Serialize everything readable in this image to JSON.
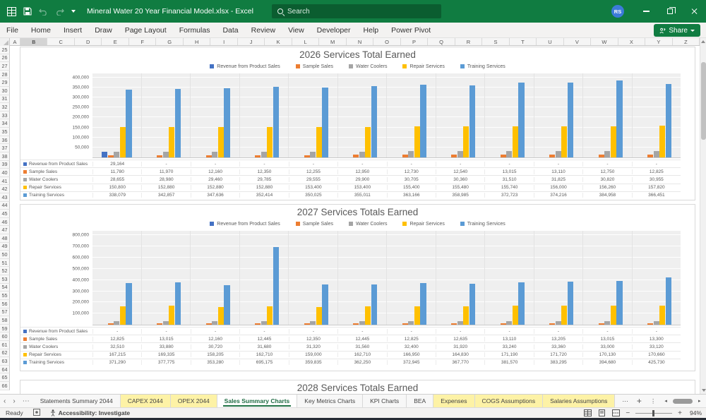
{
  "titlebar": {
    "title": "Mineral Water 20 Year Financial Model.xlsx - Excel",
    "search_placeholder": "Search",
    "avatar_initials": "RS"
  },
  "ribbon": {
    "tabs": [
      "File",
      "Home",
      "Insert",
      "Draw",
      "Page Layout",
      "Formulas",
      "Data",
      "Review",
      "View",
      "Developer",
      "Help",
      "Power Pivot"
    ],
    "share_label": "Share"
  },
  "grid": {
    "column_letters": [
      "A",
      "B",
      "C",
      "D",
      "E",
      "F",
      "G",
      "H",
      "I",
      "J",
      "K",
      "L",
      "M",
      "N",
      "O",
      "P",
      "Q",
      "R",
      "S",
      "T",
      "U",
      "V",
      "W",
      "X",
      "Y",
      "Z"
    ],
    "selected_column": "B",
    "row_start": 25,
    "row_end": 66
  },
  "chart_data": [
    {
      "type": "bar",
      "title": "2026 Services Total Earned",
      "legend_position": "top",
      "grid": true,
      "n_categories": 12,
      "ylim": [
        0,
        400000
      ],
      "ytick_step": 50000,
      "scale_max": 420000,
      "series": [
        {
          "name": "Revenue from Product Sales",
          "color": "#4472C4",
          "values": [
            29164,
            0,
            0,
            0,
            0,
            0,
            0,
            0,
            0,
            0,
            0,
            0
          ]
        },
        {
          "name": "Sample Sales",
          "color": "#ED7D31",
          "values": [
            11780,
            11970,
            12160,
            12350,
            12255,
            12950,
            12730,
            12540,
            13015,
            13110,
            12750,
            12825
          ]
        },
        {
          "name": "Water Coolers",
          "color": "#A5A5A5",
          "values": [
            28655,
            28980,
            29460,
            29785,
            29555,
            29900,
            30705,
            30360,
            31510,
            31825,
            30820,
            30955
          ]
        },
        {
          "name": "Repair Services",
          "color": "#FFC000",
          "values": [
            150800,
            152880,
            152880,
            152880,
            153400,
            153400,
            155400,
            155480,
            155740,
            156000,
            156260,
            157820
          ]
        },
        {
          "name": "Training Services",
          "color": "#5B9BD5",
          "values": [
            338079,
            342857,
            347636,
            352414,
            350025,
            355011,
            363166,
            358985,
            372723,
            374216,
            384958,
            366451
          ]
        }
      ]
    },
    {
      "type": "bar",
      "title": "2027 Services Totals Earned",
      "legend_position": "top",
      "grid": true,
      "n_categories": 12,
      "ylim": [
        0,
        800000
      ],
      "ytick_step": 100000,
      "scale_max": 840000,
      "series": [
        {
          "name": "Revenue from Product Sales",
          "color": "#4472C4",
          "values": [
            0,
            0,
            0,
            0,
            0,
            0,
            0,
            0,
            0,
            0,
            0,
            0
          ]
        },
        {
          "name": "Sample Sales",
          "color": "#ED7D31",
          "values": [
            12825,
            13015,
            12160,
            12445,
            12350,
            12445,
            12825,
            12635,
            13110,
            13205,
            13015,
            13300
          ]
        },
        {
          "name": "Water Coolers",
          "color": "#A5A5A5",
          "values": [
            32510,
            33880,
            30720,
            31680,
            31320,
            31560,
            32400,
            31920,
            33240,
            33360,
            33000,
            33120
          ]
        },
        {
          "name": "Repair Services",
          "color": "#FFC000",
          "values": [
            167215,
            169335,
            158205,
            162710,
            159000,
            162710,
            166950,
            164830,
            171190,
            171720,
            170130,
            170660
          ]
        },
        {
          "name": "Training Services",
          "color": "#5B9BD5",
          "values": [
            371290,
            377775,
            353280,
            695175,
            359835,
            362250,
            372945,
            367770,
            381570,
            383295,
            394680,
            425730
          ]
        }
      ]
    },
    {
      "type": "bar",
      "title": "2028 Services Totals Earned",
      "partial": true
    }
  ],
  "sheet_tabs": [
    {
      "label": "Statements Summary 2044",
      "style": "normal"
    },
    {
      "label": "CAPEX 2044",
      "style": "yellow"
    },
    {
      "label": "OPEX 2044",
      "style": "yellow"
    },
    {
      "label": "Sales Summary Charts",
      "style": "active"
    },
    {
      "label": "Key Metrics Charts",
      "style": "normal"
    },
    {
      "label": "KPI Charts",
      "style": "normal"
    },
    {
      "label": "BEA",
      "style": "normal"
    },
    {
      "label": "Expenses",
      "style": "yellow"
    },
    {
      "label": "COGS Assumptions",
      "style": "yellow"
    },
    {
      "label": "Salaries Assumptions",
      "style": "yellow"
    }
  ],
  "status_bar": {
    "mode": "Ready",
    "accessibility": "Accessibility: Investigate",
    "zoom_level": "94%"
  },
  "colors": {
    "titlebar_green": "#107C41",
    "search_green": "#0B5D30",
    "active_tab_green": "#217346",
    "yellow_tab": "#FDF2A6",
    "avatar_blue": "#3C7BD9"
  }
}
